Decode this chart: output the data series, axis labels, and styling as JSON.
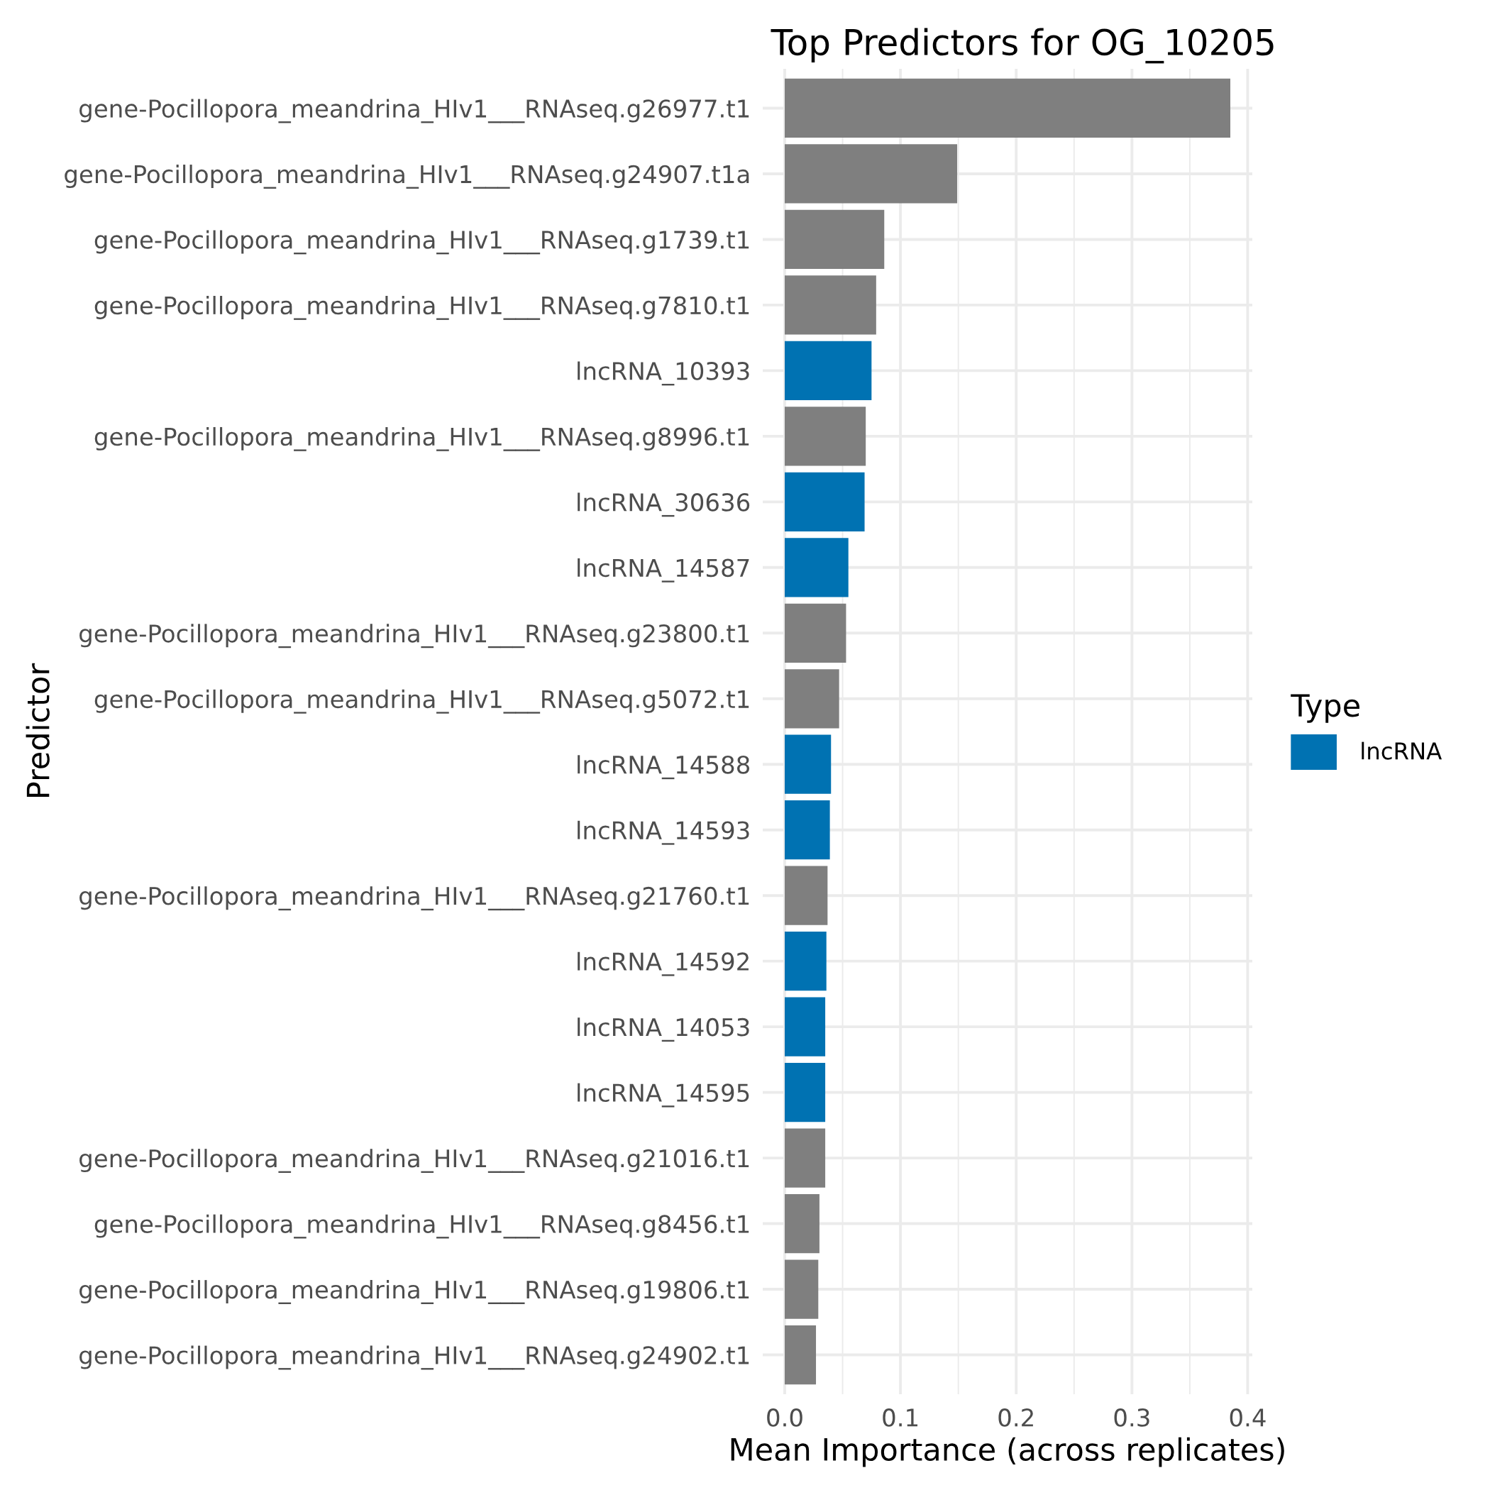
{
  "chart_data": {
    "type": "bar",
    "orientation": "horizontal",
    "title": "Top Predictors for OG_10205",
    "xlabel": "Mean Importance (across replicates)",
    "ylabel": "Predictor",
    "legend_title": "Type",
    "legend": "right",
    "grid": true,
    "categories": [
      "gene-Pocillopora_meandrina_HIv1___RNAseq.g26977.t1",
      "gene-Pocillopora_meandrina_HIv1___RNAseq.g24907.t1a",
      "gene-Pocillopora_meandrina_HIv1___RNAseq.g1739.t1",
      "gene-Pocillopora_meandrina_HIv1___RNAseq.g7810.t1",
      "lncRNA_10393",
      "gene-Pocillopora_meandrina_HIv1___RNAseq.g8996.t1",
      "lncRNA_30636",
      "lncRNA_14587",
      "gene-Pocillopora_meandrina_HIv1___RNAseq.g23800.t1",
      "gene-Pocillopora_meandrina_HIv1___RNAseq.g5072.t1",
      "lncRNA_14588",
      "lncRNA_14593",
      "gene-Pocillopora_meandrina_HIv1___RNAseq.g21760.t1",
      "lncRNA_14592",
      "lncRNA_14053",
      "lncRNA_14595",
      "gene-Pocillopora_meandrina_HIv1___RNAseq.g21016.t1",
      "gene-Pocillopora_meandrina_HIv1___RNAseq.g8456.t1",
      "gene-Pocillopora_meandrina_HIv1___RNAseq.g19806.t1",
      "gene-Pocillopora_meandrina_HIv1___RNAseq.g24902.t1"
    ],
    "series": [
      {
        "name": "lncRNA",
        "color": "#0072b2",
        "values": [
          null,
          null,
          null,
          null,
          0.075,
          null,
          0.069,
          0.055,
          null,
          null,
          0.04,
          0.039,
          null,
          0.036,
          0.035,
          0.035,
          null,
          null,
          null,
          null
        ]
      },
      {
        "color": "#7f7f7f",
        "values": [
          0.385,
          0.149,
          0.086,
          0.079,
          null,
          0.07,
          null,
          null,
          0.053,
          0.047,
          null,
          null,
          0.037,
          null,
          null,
          null,
          0.035,
          0.03,
          0.029,
          0.027
        ]
      }
    ],
    "xlim": [
      -0.019,
      0.404
    ],
    "xticks": [
      {
        "value": 0,
        "label": "0.0"
      },
      {
        "value": 0.1,
        "label": "0.1"
      },
      {
        "value": 0.2,
        "label": "0.2"
      },
      {
        "value": 0.3,
        "label": "0.3"
      },
      {
        "value": 0.4,
        "label": "0.4"
      }
    ]
  }
}
